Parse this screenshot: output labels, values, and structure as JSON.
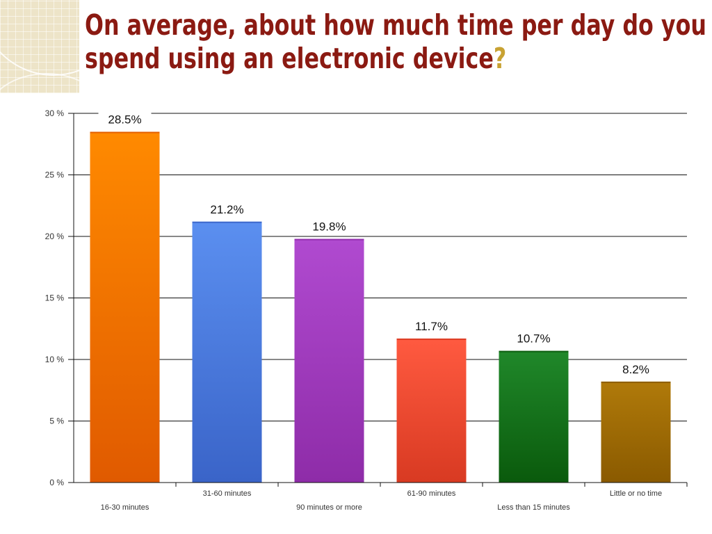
{
  "slide": {
    "title_line1": "On average, about how much time per day do you",
    "title_line2": "spend using an electronic device",
    "title_mark": "?"
  },
  "chart_data": {
    "type": "bar",
    "title": "On average, about how much time per day do you spend using an electronic device?",
    "xlabel": "",
    "ylabel": "",
    "ylim": [
      0,
      30
    ],
    "yticks": [
      0,
      5,
      10,
      15,
      20,
      25,
      30
    ],
    "ytick_labels": [
      "0 %",
      "5 %",
      "10 %",
      "15 %",
      "20 %",
      "25 %",
      "30 %"
    ],
    "grid": true,
    "legend": "none",
    "categories": [
      "16-30 minutes",
      "31-60 minutes",
      "90 minutes or more",
      "61-90 minutes",
      "Less than 15 minutes",
      "Little or no time"
    ],
    "values": [
      28.5,
      21.2,
      19.8,
      11.7,
      10.7,
      8.2
    ],
    "data_labels": [
      "28.5%",
      "21.2%",
      "19.8%",
      "11.7%",
      "10.7%",
      "8.2%"
    ],
    "colors": [
      [
        "#ff8a00",
        "#e05a00"
      ],
      [
        "#5b8ff0",
        "#3a64c8"
      ],
      [
        "#b04ad0",
        "#8e2ca8"
      ],
      [
        "#ff5a40",
        "#d83a22"
      ],
      [
        "#20882a",
        "#0a5a0c"
      ],
      [
        "#b07a0a",
        "#8a5a00"
      ]
    ]
  }
}
